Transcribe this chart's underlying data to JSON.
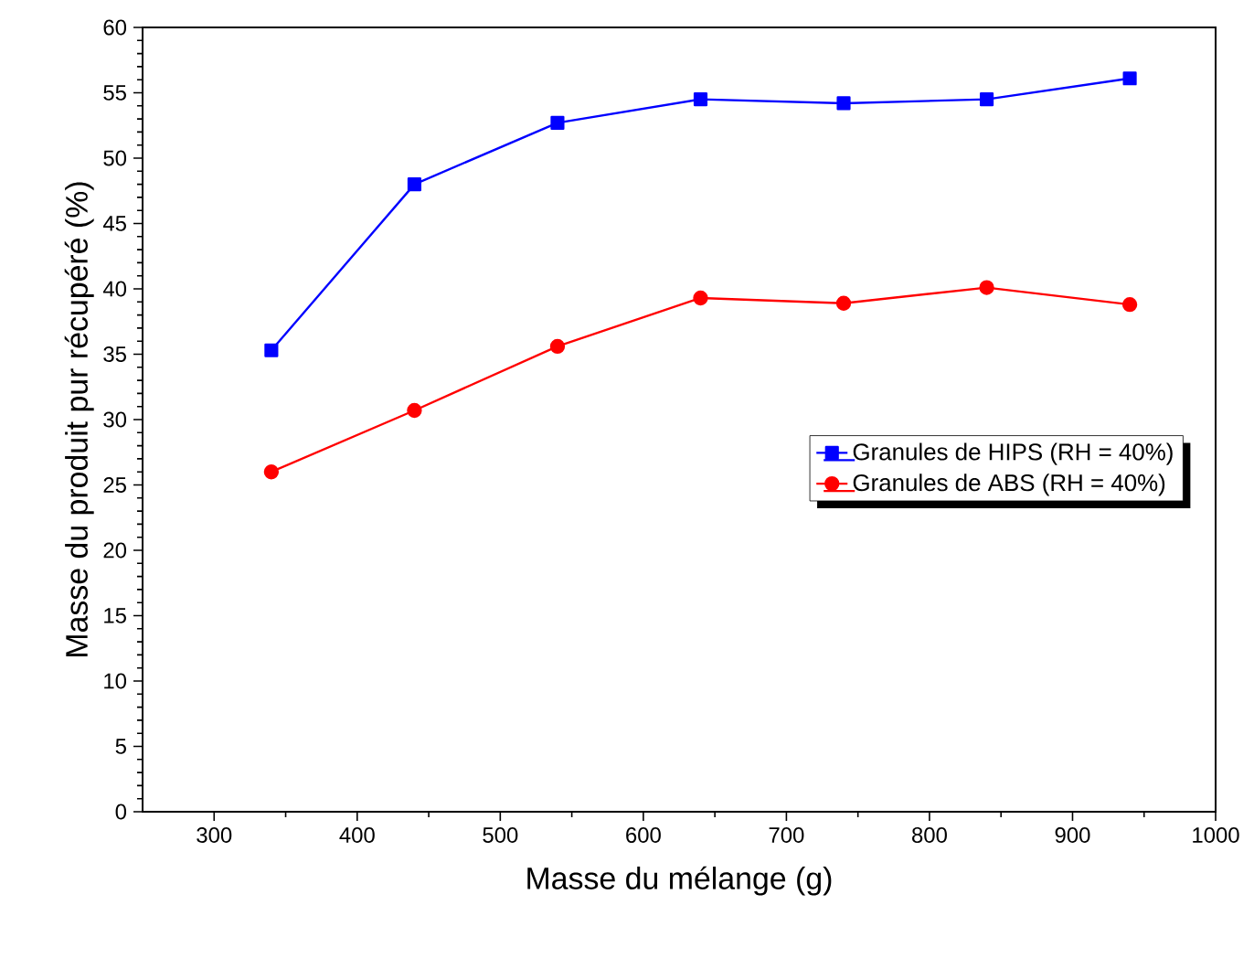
{
  "chart_data": {
    "type": "line",
    "xlabel": "Masse du mélange (g)",
    "ylabel": "Masse du produit pur récupéré (%)",
    "x": [
      340,
      440,
      540,
      640,
      740,
      840,
      940
    ],
    "series": [
      {
        "name": "Granules de HIPS (RH = 40%)",
        "color": "#0000ff",
        "marker": "square",
        "values": [
          35.3,
          48.0,
          52.7,
          54.5,
          54.2,
          54.5,
          56.1
        ]
      },
      {
        "name": "Granules de ABS  (RH = 40%)",
        "color": "#ff0000",
        "marker": "circle",
        "values": [
          26.0,
          30.7,
          35.6,
          39.3,
          38.9,
          40.1,
          38.8
        ]
      }
    ],
    "xlim": [
      250,
      1000
    ],
    "ylim": [
      0,
      60
    ],
    "xticks": [
      300,
      400,
      500,
      600,
      700,
      800,
      900,
      1000
    ],
    "yticks": [
      0,
      5,
      10,
      15,
      20,
      25,
      30,
      35,
      40,
      45,
      50,
      55,
      60
    ],
    "grid": false,
    "legend": "right",
    "line_style": "solid"
  }
}
